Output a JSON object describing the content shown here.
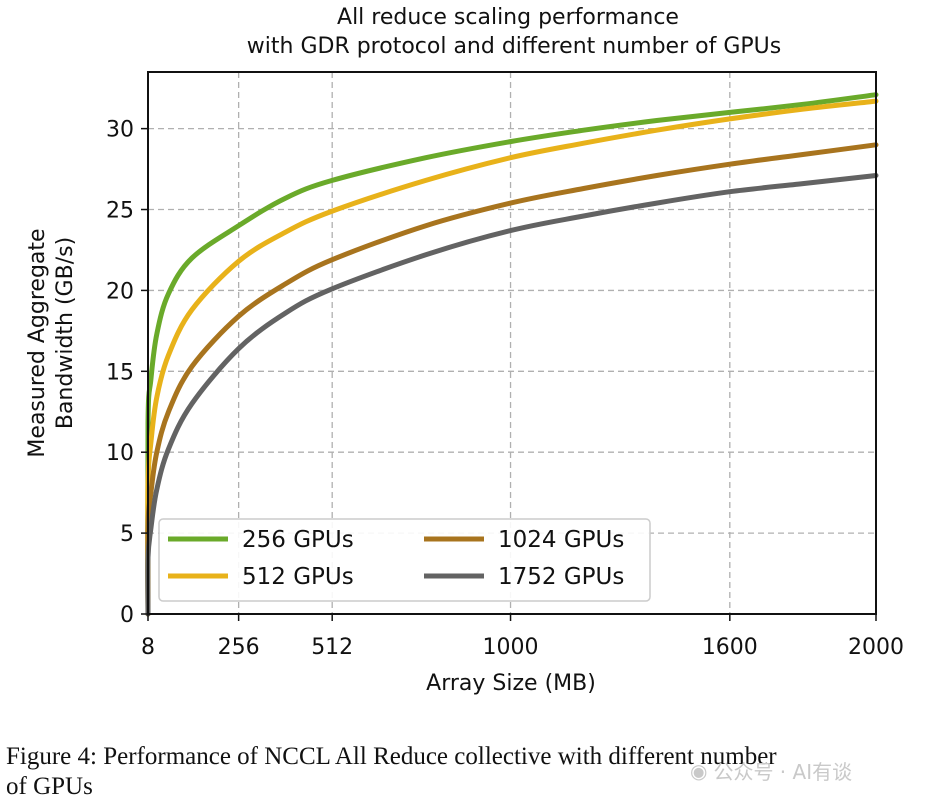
{
  "chart_data": {
    "type": "line",
    "title": [
      "All reduce scaling performance",
      "with GDR protocol and different number of GPUs"
    ],
    "xlabel": "Array Size (MB)",
    "ylabel": [
      "Measured Aggregate",
      "Bandwidth (GB/s)"
    ],
    "xlim": [
      8,
      2000
    ],
    "ylim": [
      0,
      33.5
    ],
    "xticks": [
      8,
      256,
      512,
      1000,
      1600,
      2000
    ],
    "yticks": [
      0,
      5,
      10,
      15,
      20,
      25,
      30
    ],
    "grid": true,
    "legend_position": "lower-left",
    "series": [
      {
        "name": "256 GPUs",
        "color": "#6aaa2a",
        "x": [
          8,
          16,
          32,
          64,
          128,
          256,
          384,
          512,
          768,
          1000,
          1200,
          1400,
          1600,
          1800,
          2000
        ],
        "y": [
          11.8,
          14.5,
          17.3,
          19.8,
          22.0,
          24.0,
          25.7,
          26.8,
          28.2,
          29.2,
          29.9,
          30.5,
          31.0,
          31.5,
          32.1
        ]
      },
      {
        "name": "512 GPUs",
        "color": "#e8b21a",
        "x": [
          8,
          16,
          32,
          64,
          128,
          256,
          384,
          512,
          768,
          1000,
          1200,
          1400,
          1600,
          1800,
          2000
        ],
        "y": [
          8.0,
          10.6,
          13.4,
          16.0,
          18.8,
          21.8,
          23.6,
          24.9,
          26.8,
          28.2,
          29.1,
          29.9,
          30.6,
          31.2,
          31.7
        ]
      },
      {
        "name": "1024 GPUs",
        "color": "#a8741e",
        "x": [
          8,
          16,
          32,
          64,
          128,
          256,
          384,
          512,
          768,
          1000,
          1200,
          1400,
          1600,
          1800,
          2000
        ],
        "y": [
          5.5,
          7.5,
          10.0,
          12.5,
          15.3,
          18.4,
          20.4,
          21.9,
          24.0,
          25.4,
          26.3,
          27.1,
          27.8,
          28.4,
          29.0
        ]
      },
      {
        "name": "1752 GPUs",
        "color": "#636363",
        "x": [
          8,
          16,
          32,
          64,
          128,
          256,
          384,
          512,
          768,
          1000,
          1200,
          1400,
          1600,
          1800,
          2000
        ],
        "y": [
          3.5,
          5.3,
          7.7,
          10.2,
          13.0,
          16.4,
          18.6,
          20.1,
          22.2,
          23.7,
          24.6,
          25.4,
          26.1,
          26.6,
          27.1
        ]
      }
    ]
  },
  "caption": {
    "line1": "Figure 4: Performance of NCCL All Reduce collective with different number",
    "line2": "of GPUs"
  },
  "watermark": {
    "text": "公众号 · AI有谈",
    "icon": "wechat-icon"
  }
}
